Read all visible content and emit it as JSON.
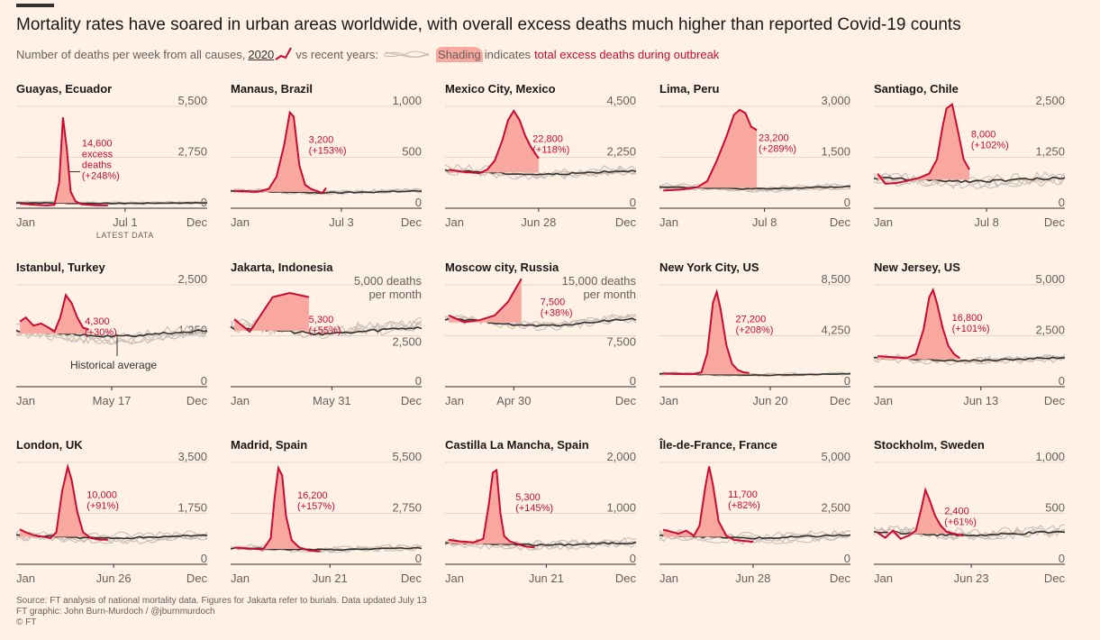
{
  "header": {
    "title": "Mortality rates have soared in urban areas worldwide, with overall excess deaths much higher than reported Covid-19 counts",
    "subtitle_lead": "Number of deaths per week from all causes,",
    "subtitle_2020": "2020",
    "subtitle_vs": "vs recent years:",
    "subtitle_shading": "Shading",
    "subtitle_indicates": "indicates",
    "subtitle_excess": "total excess deaths during outbreak"
  },
  "footer": {
    "source": "Source: FT analysis of national mortality data. Figures for Jakarta refer to burials. Data updated July 13",
    "graphic": "FT graphic: John Burn-Murdoch / @jburnmurdoch",
    "copyright": "© FT"
  },
  "colors": {
    "background": "#fff1e5",
    "red": "#cc0a31",
    "shade": "#f8a89e",
    "historical": "#33302e",
    "recent": "#c9bfb7"
  },
  "chart_data": [
    {
      "type": "line",
      "title": "Guayas, Ecuador",
      "ylim": [
        0,
        5500
      ],
      "yticks": [
        "5,500",
        "2,750",
        "0"
      ],
      "xticks": [
        "Jan",
        "Jul 1",
        "Dec"
      ],
      "last_label": "Jul 1",
      "extra_label": "LATEST DATA",
      "annotation": [
        "14,600",
        "excess",
        "deaths",
        "(+248%)"
      ],
      "ann_pos": "left-arrow",
      "x_2020": [
        0.02,
        0.1,
        0.16,
        0.2,
        0.225,
        0.245,
        0.265,
        0.285,
        0.31,
        0.34,
        0.38,
        0.42,
        0.48
      ],
      "y_2020": [
        250,
        180,
        150,
        180,
        1400,
        4900,
        3200,
        900,
        380,
        220,
        180,
        160,
        150
      ],
      "base_ratio": 0.05,
      "noise": 0.01
    },
    {
      "type": "line",
      "title": "Manaus, Brazil",
      "ylim": [
        0,
        1000
      ],
      "yticks": [
        "1,000",
        "500",
        "0"
      ],
      "xticks": [
        "Jan",
        "Jul 3",
        "Dec"
      ],
      "last_label": "Jul 3",
      "annotation": [
        "3,200",
        "(+153%)"
      ],
      "x_2020": [
        0.02,
        0.08,
        0.14,
        0.2,
        0.24,
        0.28,
        0.31,
        0.33,
        0.36,
        0.39,
        0.42,
        0.45,
        0.48,
        0.5
      ],
      "y_2020": [
        170,
        165,
        160,
        190,
        310,
        620,
        940,
        900,
        420,
        230,
        190,
        170,
        150,
        200
      ],
      "base_ratio": 0.16,
      "noise": 0.02
    },
    {
      "type": "line",
      "title": "Mexico City, Mexico",
      "ylim": [
        0,
        4500
      ],
      "yticks": [
        "4,500",
        "2,250",
        "0"
      ],
      "xticks": [
        "Jan",
        "Jun 28",
        "Dec"
      ],
      "last_label": "Jun 28",
      "annotation": [
        "22,800",
        "(+118%)"
      ],
      "x_2020": [
        0.02,
        0.1,
        0.18,
        0.22,
        0.26,
        0.3,
        0.33,
        0.36,
        0.39,
        0.42,
        0.45,
        0.49
      ],
      "y_2020": [
        1700,
        1600,
        1550,
        1700,
        2100,
        3000,
        3900,
        4300,
        3900,
        3200,
        2700,
        2200
      ],
      "base_ratio": 0.35,
      "noise": 0.03
    },
    {
      "type": "line",
      "title": "Lima, Peru",
      "ylim": [
        0,
        3000
      ],
      "yticks": [
        "3,000",
        "1,500",
        "0"
      ],
      "xticks": [
        "Jan",
        "Jul 8",
        "Dec"
      ],
      "last_label": "Jul 8",
      "annotation": [
        "23,200",
        "(+289%)"
      ],
      "x_2020": [
        0.02,
        0.12,
        0.2,
        0.25,
        0.3,
        0.35,
        0.39,
        0.42,
        0.45,
        0.48,
        0.51
      ],
      "y_2020": [
        520,
        550,
        620,
        800,
        1400,
        2100,
        2750,
        2900,
        2800,
        2400,
        2300
      ],
      "base_ratio": 0.2,
      "noise": 0.02
    },
    {
      "type": "line",
      "title": "Santiago, Chile",
      "ylim": [
        0,
        2500
      ],
      "yticks": [
        "2,500",
        "1,250",
        "0"
      ],
      "xticks": [
        "Jan",
        "Jul 8",
        "Dec"
      ],
      "last_label": "Jul 8",
      "annotation": [
        "8,000",
        "(+102%)"
      ],
      "x_2020": [
        0.02,
        0.06,
        0.12,
        0.18,
        0.24,
        0.29,
        0.33,
        0.36,
        0.38,
        0.41,
        0.44,
        0.47,
        0.5
      ],
      "y_2020": [
        850,
        600,
        620,
        680,
        750,
        850,
        1200,
        2000,
        2450,
        2550,
        1900,
        1200,
        950
      ],
      "base_ratio": 0.28,
      "noise": 0.04
    },
    {
      "type": "line",
      "title": "Istanbul, Turkey",
      "ylim": [
        0,
        2500
      ],
      "yticks": [
        "2,500",
        "1,250",
        "0"
      ],
      "xticks": [
        "Jan",
        "May 17",
        "Dec"
      ],
      "last_label": "May 17",
      "annotation": [
        "4,300",
        "(+30%)"
      ],
      "note": "Historical average",
      "x_2020": [
        0.02,
        0.05,
        0.09,
        0.13,
        0.17,
        0.2,
        0.23,
        0.26,
        0.29,
        0.32,
        0.35,
        0.38
      ],
      "y_2020": [
        1600,
        1700,
        1500,
        1550,
        1450,
        1350,
        1700,
        2250,
        2050,
        1700,
        1450,
        1400
      ],
      "base_ratio": 0.52,
      "noise": 0.04
    },
    {
      "type": "line",
      "title": "Jakarta, Indonesia",
      "ylim": [
        0,
        5000
      ],
      "yticks": [
        "5,000 deaths",
        "per month",
        "2,500",
        "0"
      ],
      "xticks": [
        "Jan",
        "May 31",
        "Dec"
      ],
      "last_label": "May 31",
      "annotation": [
        "5,300",
        "(+55%)"
      ],
      "x_2020": [
        0.02,
        0.1,
        0.22,
        0.31,
        0.41
      ],
      "y_2020": [
        3300,
        2700,
        4400,
        4600,
        4400
      ],
      "base_ratio": 0.55,
      "noise": 0.05
    },
    {
      "type": "line",
      "title": "Moscow city, Russia",
      "ylim": [
        0,
        15000
      ],
      "yticks": [
        "15,000 deaths",
        "per month",
        "7,500",
        "0"
      ],
      "xticks": [
        "Jan",
        "Apr 30",
        "Dec"
      ],
      "last_label": "Apr 30",
      "annotation": [
        "7,500",
        "(+38%)"
      ],
      "x_2020": [
        0.02,
        0.1,
        0.18,
        0.26,
        0.33,
        0.4
      ],
      "y_2020": [
        10500,
        9500,
        9800,
        10500,
        12500,
        17500
      ],
      "base_ratio": 0.63,
      "noise": 0.03
    },
    {
      "type": "line",
      "title": "New York City, US",
      "ylim": [
        0,
        8500
      ],
      "yticks": [
        "8,500",
        "4,250",
        "0"
      ],
      "xticks": [
        "Jan",
        "Jun 20",
        "Dec"
      ],
      "last_label": "Jun 20",
      "annotation": [
        "27,200",
        "(+208%)"
      ],
      "x_2020": [
        0.02,
        0.12,
        0.18,
        0.22,
        0.25,
        0.28,
        0.3,
        0.32,
        0.35,
        0.38,
        0.41,
        0.44,
        0.47
      ],
      "y_2020": [
        1100,
        1080,
        1050,
        1200,
        2800,
        7000,
        7900,
        6500,
        3500,
        1900,
        1400,
        1200,
        1150
      ],
      "base_ratio": 0.12,
      "noise": 0.01
    },
    {
      "type": "line",
      "title": "New Jersey, US",
      "ylim": [
        0,
        5000
      ],
      "yticks": [
        "5,000",
        "2,500",
        "0"
      ],
      "xticks": [
        "Jan",
        "Jun 13",
        "Dec"
      ],
      "last_label": "Jun 13",
      "annotation": [
        "16,800",
        "(+101%)"
      ],
      "x_2020": [
        0.02,
        0.1,
        0.17,
        0.22,
        0.26,
        0.29,
        0.31,
        0.33,
        0.36,
        0.39,
        0.42,
        0.45
      ],
      "y_2020": [
        1500,
        1450,
        1400,
        1600,
        2800,
        4400,
        4750,
        4100,
        2900,
        2000,
        1600,
        1400
      ],
      "base_ratio": 0.27,
      "noise": 0.03
    },
    {
      "type": "line",
      "title": "London, UK",
      "ylim": [
        0,
        3500
      ],
      "yticks": [
        "3,500",
        "1,750",
        "0"
      ],
      "xticks": [
        "Jan",
        "Jun 26",
        "Dec"
      ],
      "last_label": "Jun 26",
      "annotation": [
        "10,000",
        "(+91%)"
      ],
      "x_2020": [
        0.02,
        0.05,
        0.09,
        0.14,
        0.18,
        0.21,
        0.24,
        0.27,
        0.29,
        0.32,
        0.35,
        0.39,
        0.44,
        0.48
      ],
      "y_2020": [
        1200,
        1100,
        1000,
        950,
        900,
        1100,
        2500,
        3350,
        2900,
        1800,
        1100,
        900,
        850,
        850
      ],
      "base_ratio": 0.27,
      "noise": 0.03
    },
    {
      "type": "line",
      "title": "Madrid, Spain",
      "ylim": [
        0,
        5500
      ],
      "yticks": [
        "5,500",
        "2,750",
        "0"
      ],
      "xticks": [
        "Jan",
        "Jun 21",
        "Dec"
      ],
      "last_label": "Jun 21",
      "annotation": [
        "16,200",
        "(+157%)"
      ],
      "x_2020": [
        0.02,
        0.1,
        0.17,
        0.21,
        0.23,
        0.25,
        0.27,
        0.29,
        0.32,
        0.36,
        0.41,
        0.47
      ],
      "y_2020": [
        900,
        850,
        800,
        1400,
        3600,
        5200,
        4800,
        2600,
        1300,
        900,
        750,
        700
      ],
      "base_ratio": 0.15,
      "noise": 0.02
    },
    {
      "type": "line",
      "title": "Castilla La Mancha, Spain",
      "ylim": [
        0,
        2000
      ],
      "yticks": [
        "2,000",
        "1,000",
        "0"
      ],
      "xticks": [
        "Jan",
        "Jun 21",
        "Dec"
      ],
      "last_label": "Jun 21",
      "annotation": [
        "5,300",
        "(+145%)"
      ],
      "x_2020": [
        0.02,
        0.08,
        0.15,
        0.2,
        0.23,
        0.25,
        0.27,
        0.29,
        0.31,
        0.34,
        0.38,
        0.42,
        0.47
      ],
      "y_2020": [
        480,
        450,
        430,
        500,
        1200,
        1800,
        1850,
        1000,
        550,
        450,
        400,
        350,
        330
      ],
      "base_ratio": 0.2,
      "noise": 0.03
    },
    {
      "type": "line",
      "title": "Île-de-France, France",
      "ylim": [
        0,
        5000
      ],
      "yticks": [
        "5,000",
        "2,500",
        "0"
      ],
      "xticks": [
        "Jan",
        "Jun 28",
        "Dec"
      ],
      "last_label": "Jun 28",
      "annotation": [
        "11,700",
        "(+82%)"
      ],
      "x_2020": [
        0.02,
        0.06,
        0.1,
        0.14,
        0.18,
        0.21,
        0.24,
        0.26,
        0.28,
        0.31,
        0.35,
        0.39,
        0.44,
        0.49
      ],
      "y_2020": [
        1700,
        1600,
        1500,
        1650,
        1400,
        1900,
        3800,
        4800,
        3900,
        2100,
        1400,
        1200,
        1150,
        1100
      ],
      "base_ratio": 0.27,
      "noise": 0.03
    },
    {
      "type": "line",
      "title": "Stockholm, Sweden",
      "ylim": [
        0,
        1000
      ],
      "yticks": [
        "1,000",
        "500",
        "0"
      ],
      "xticks": [
        "Jan",
        "Jun 23",
        "Dec"
      ],
      "last_label": "Jun 23",
      "annotation": [
        "2,400",
        "(+61%)"
      ],
      "x_2020": [
        0.02,
        0.06,
        0.1,
        0.14,
        0.18,
        0.22,
        0.25,
        0.27,
        0.29,
        0.32,
        0.35,
        0.38,
        0.42,
        0.47
      ],
      "y_2020": [
        310,
        260,
        330,
        250,
        280,
        330,
        560,
        730,
        640,
        480,
        380,
        320,
        300,
        280
      ],
      "base_ratio": 0.3,
      "noise": 0.04
    }
  ]
}
